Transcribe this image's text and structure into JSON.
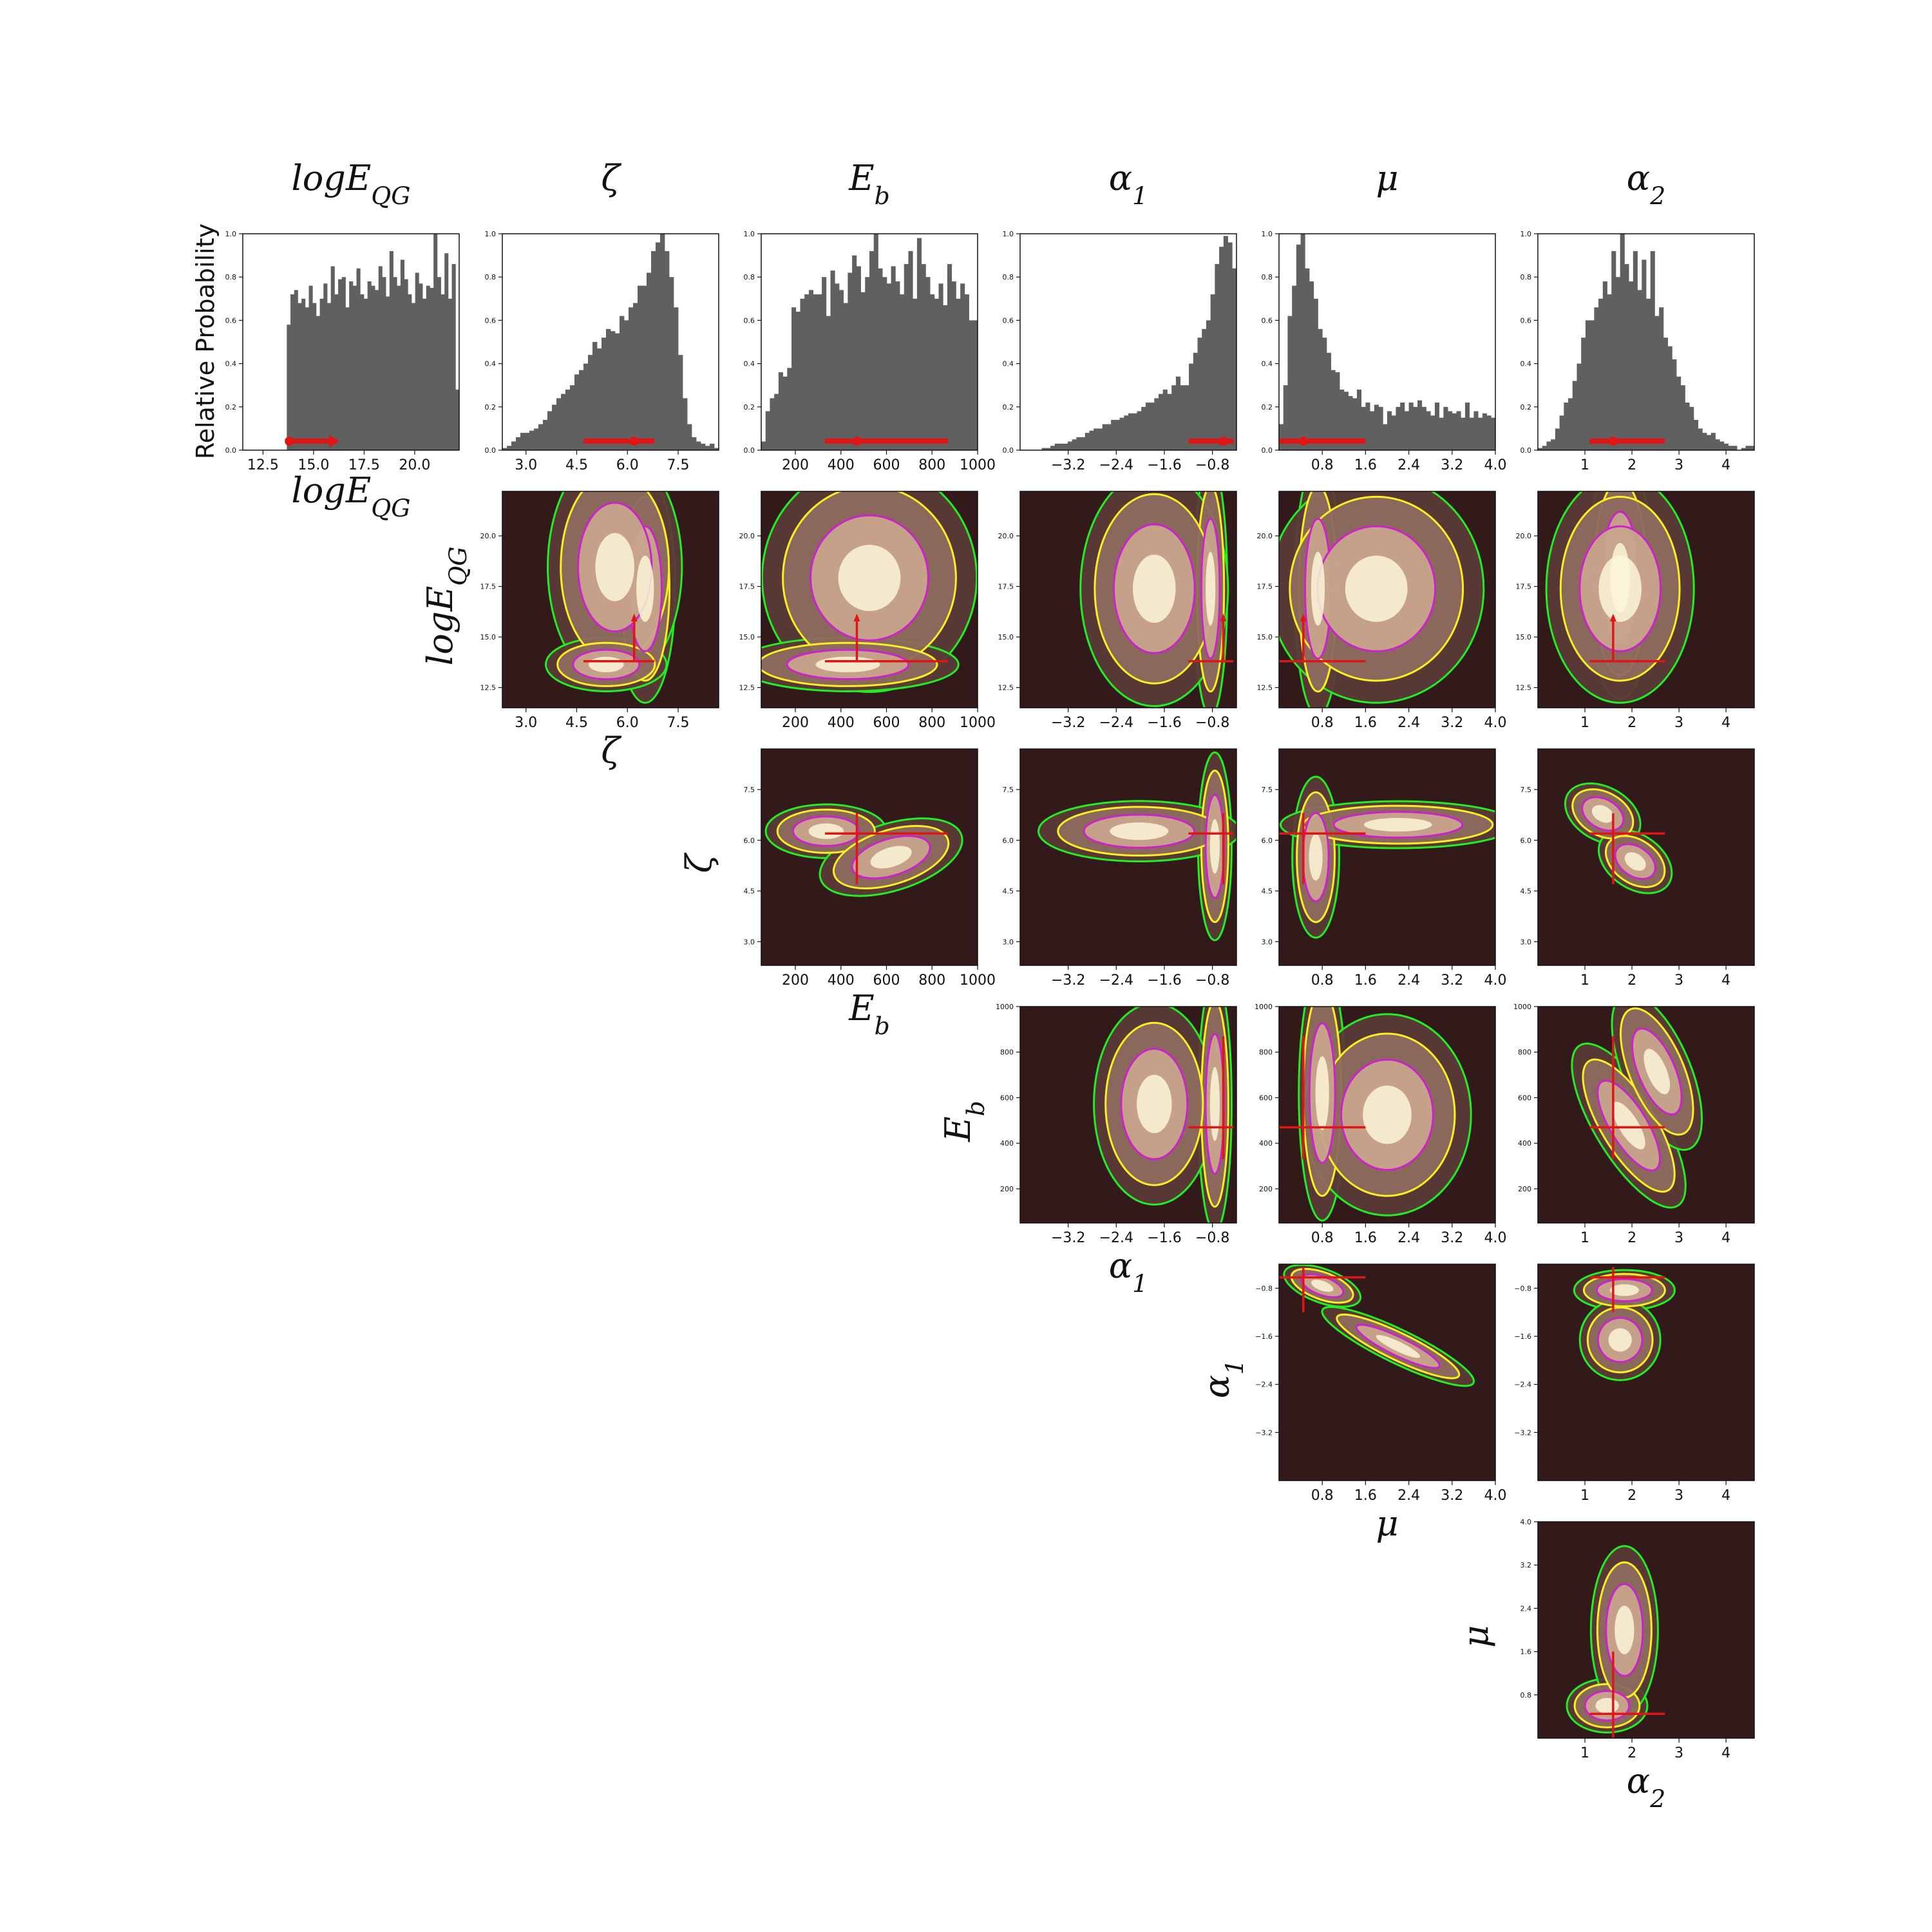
{
  "ylabel_rel": "Relative Probability",
  "colors": {
    "hist_bar": "#606060",
    "kde_bg": "#321a1a",
    "kde_hi": "#fcf6d8",
    "contour_green": "#22ee22",
    "contour_yellow": "#ffee22",
    "contour_magenta": "#cc22cc",
    "best_fit": "#e01515"
  },
  "params": [
    {
      "key": "logEQG",
      "base": "logE",
      "sub": "QG",
      "italic_base": true,
      "range": [
        11.5,
        22.2
      ],
      "ticks": [
        12.5,
        15.0,
        17.5,
        20.0
      ],
      "tick_labels": [
        "12.5",
        "15.0",
        "17.5",
        "20.0"
      ],
      "best": 13.8,
      "ci": [
        13.6,
        15.9
      ],
      "ci_arrow": "up"
    },
    {
      "key": "zeta",
      "base": "ζ",
      "sub": "",
      "italic_base": true,
      "range": [
        2.3,
        8.7
      ],
      "ticks": [
        3.0,
        4.5,
        6.0,
        7.5
      ],
      "tick_labels": [
        "3.0",
        "4.5",
        "6.0",
        "7.5"
      ],
      "best": 6.2,
      "ci": [
        4.7,
        6.8
      ],
      "ci_arrow": "none"
    },
    {
      "key": "Eb",
      "base": "E",
      "sub": "b",
      "italic_base": true,
      "range": [
        50,
        1000
      ],
      "ticks": [
        200,
        400,
        600,
        800,
        1000
      ],
      "tick_labels": [
        "200",
        "400",
        "600",
        "800",
        "1000"
      ],
      "best": 470,
      "ci": [
        330,
        870
      ],
      "ci_arrow": "none"
    },
    {
      "key": "alpha1",
      "base": "α",
      "sub": "1",
      "italic_base": true,
      "range": [
        -4.0,
        -0.4
      ],
      "ticks": [
        -3.2,
        -2.4,
        -1.6,
        -0.8
      ],
      "tick_labels": [
        "−3.2",
        "−2.4",
        "−1.6",
        "−0.8"
      ],
      "best": -0.62,
      "ci": [
        -1.2,
        -0.45
      ],
      "ci_arrow": "none"
    },
    {
      "key": "mu",
      "base": "μ",
      "sub": "",
      "italic_base": true,
      "range": [
        0.0,
        4.0
      ],
      "ticks": [
        0.8,
        1.6,
        2.4,
        3.2,
        4.0
      ],
      "tick_labels": [
        "0.8",
        "1.6",
        "2.4",
        "3.2",
        "4.0"
      ],
      "best": 0.45,
      "ci": [
        0.0,
        1.6
      ],
      "ci_arrow": "none"
    },
    {
      "key": "alpha2",
      "base": "α",
      "sub": "2",
      "italic_base": true,
      "range": [
        0.0,
        4.6
      ],
      "ticks": [
        1,
        2,
        3,
        4
      ],
      "tick_labels": [
        "1",
        "2",
        "3",
        "4"
      ],
      "best": 1.6,
      "ci": [
        1.1,
        2.7
      ],
      "ci_arrow": "none"
    }
  ],
  "chart_data": {
    "type": "corner",
    "description": "",
    "histograms": [
      {
        "param": "logEQG",
        "ylim": [
          0,
          1
        ],
        "yticks": [
          "0.0",
          "0.2",
          "0.4",
          "0.6",
          "0.8",
          "1.0"
        ],
        "values": [
          0,
          0,
          0,
          0,
          0,
          0,
          0,
          0,
          0,
          0,
          0,
          0,
          0.58,
          0.72,
          0.74,
          0.68,
          0.7,
          0.66,
          0.76,
          0.68,
          0.62,
          0.7,
          0.77,
          0.68,
          0.85,
          0.72,
          0.79,
          0.8,
          0.66,
          0.78,
          0.76,
          0.84,
          0.72,
          0.7,
          0.78,
          0.76,
          0.74,
          0.85,
          0.8,
          0.71,
          0.92,
          0.8,
          0.76,
          0.88,
          0.79,
          0.72,
          0.68,
          0.82,
          0.77,
          0.7,
          0.76,
          0.75,
          1.0,
          0.8,
          0.72,
          0.91,
          0.7,
          0.86,
          0.28
        ]
      },
      {
        "param": "zeta",
        "ylim": [
          0,
          1
        ],
        "yticks": [
          "0.0",
          "0.2",
          "0.4",
          "0.6",
          "0.8",
          "1.0"
        ],
        "values": [
          0.01,
          0.02,
          0.04,
          0.06,
          0.08,
          0.08,
          0.09,
          0.1,
          0.12,
          0.14,
          0.18,
          0.21,
          0.24,
          0.26,
          0.28,
          0.3,
          0.35,
          0.37,
          0.4,
          0.44,
          0.5,
          0.47,
          0.52,
          0.56,
          0.55,
          0.54,
          0.62,
          0.6,
          0.66,
          0.68,
          0.76,
          0.76,
          0.82,
          0.92,
          0.96,
          1.0,
          0.92,
          0.8,
          0.66,
          0.44,
          0.24,
          0.12,
          0.06,
          0.04,
          0.03,
          0.02,
          0.03,
          0.01
        ]
      },
      {
        "param": "Eb",
        "ylim": [
          0,
          1
        ],
        "yticks": [
          "0.0",
          "0.2",
          "0.4",
          "0.6",
          "0.8",
          "1.0"
        ],
        "values": [
          0.04,
          0.18,
          0.24,
          0.26,
          0.36,
          0.34,
          0.38,
          0.66,
          0.64,
          0.7,
          0.72,
          0.74,
          0.72,
          0.72,
          0.8,
          0.62,
          0.83,
          0.77,
          0.74,
          0.68,
          0.82,
          0.9,
          0.85,
          0.73,
          0.8,
          0.92,
          1.0,
          0.84,
          0.8,
          0.77,
          0.85,
          0.78,
          0.72,
          0.86,
          0.92,
          0.7,
          0.98,
          0.86,
          0.8,
          0.72,
          0.7,
          0.77,
          0.67,
          0.86,
          0.78,
          0.7,
          0.77,
          0.72,
          0.6,
          0.6
        ]
      },
      {
        "param": "alpha1",
        "ylim": [
          0,
          1
        ],
        "yticks": [
          "0.0",
          "0.2",
          "0.4",
          "0.6",
          "0.8",
          "1.0"
        ],
        "values": [
          0,
          0,
          0,
          0,
          0,
          0.01,
          0.01,
          0.02,
          0.03,
          0.03,
          0.03,
          0.04,
          0.05,
          0.06,
          0.06,
          0.08,
          0.09,
          0.1,
          0.1,
          0.12,
          0.12,
          0.14,
          0.14,
          0.15,
          0.16,
          0.17,
          0.17,
          0.18,
          0.2,
          0.22,
          0.22,
          0.24,
          0.26,
          0.28,
          0.26,
          0.3,
          0.34,
          0.3,
          0.3,
          0.4,
          0.45,
          0.52,
          0.56,
          0.6,
          0.72,
          0.86,
          0.94,
          0.99,
          0.96,
          0.84
        ]
      },
      {
        "param": "mu",
        "ylim": [
          0,
          1
        ],
        "yticks": [
          "0.0",
          "0.2",
          "0.4",
          "0.6",
          "0.8",
          "1.0"
        ],
        "values": [
          0.12,
          0.3,
          0.62,
          0.76,
          0.95,
          1.0,
          0.84,
          0.78,
          0.7,
          0.56,
          0.52,
          0.45,
          0.37,
          0.36,
          0.28,
          0.27,
          0.25,
          0.24,
          0.28,
          0.2,
          0.22,
          0.18,
          0.21,
          0.2,
          0.12,
          0.18,
          0.16,
          0.2,
          0.22,
          0.18,
          0.22,
          0.2,
          0.23,
          0.2,
          0.18,
          0.16,
          0.22,
          0.15,
          0.2,
          0.18,
          0.17,
          0.18,
          0.15,
          0.22,
          0.15,
          0.18,
          0.15,
          0.17,
          0.16,
          0.15
        ]
      },
      {
        "param": "alpha2",
        "ylim": [
          0,
          1
        ],
        "yticks": [
          "0.0",
          "0.2",
          "0.4",
          "0.6",
          "0.8",
          "1.0"
        ],
        "values": [
          0.01,
          0.02,
          0.04,
          0.05,
          0.1,
          0.16,
          0.22,
          0.24,
          0.32,
          0.4,
          0.52,
          0.6,
          0.6,
          0.66,
          0.7,
          0.78,
          0.72,
          0.92,
          0.8,
          1.0,
          0.86,
          0.78,
          0.92,
          0.74,
          0.88,
          0.7,
          0.92,
          0.62,
          0.66,
          0.52,
          0.48,
          0.42,
          0.34,
          0.3,
          0.22,
          0.2,
          0.14,
          0.1,
          0.08,
          0.07,
          0.08,
          0.05,
          0.04,
          0.03,
          0.02,
          0.02,
          0.0,
          0.01,
          0.02,
          0.02
        ]
      }
    ],
    "pairs": [
      {
        "x": "zeta",
        "y": "logEQG",
        "row": 1,
        "col": 1
      },
      {
        "x": "Eb",
        "y": "logEQG",
        "row": 1,
        "col": 2
      },
      {
        "x": "alpha1",
        "y": "logEQG",
        "row": 1,
        "col": 3
      },
      {
        "x": "mu",
        "y": "logEQG",
        "row": 1,
        "col": 4
      },
      {
        "x": "alpha2",
        "y": "logEQG",
        "row": 1,
        "col": 5
      },
      {
        "x": "Eb",
        "y": "zeta",
        "row": 2,
        "col": 2
      },
      {
        "x": "alpha1",
        "y": "zeta",
        "row": 2,
        "col": 3
      },
      {
        "x": "mu",
        "y": "zeta",
        "row": 2,
        "col": 4
      },
      {
        "x": "alpha2",
        "y": "zeta",
        "row": 2,
        "col": 5
      },
      {
        "x": "alpha1",
        "y": "Eb",
        "row": 3,
        "col": 3
      },
      {
        "x": "mu",
        "y": "Eb",
        "row": 3,
        "col": 4
      },
      {
        "x": "alpha2",
        "y": "Eb",
        "row": 3,
        "col": 5
      },
      {
        "x": "mu",
        "y": "alpha1",
        "row": 4,
        "col": 4
      },
      {
        "x": "alpha2",
        "y": "alpha1",
        "row": 4,
        "col": 5
      },
      {
        "x": "alpha2",
        "y": "mu",
        "row": 5,
        "col": 5
      }
    ]
  }
}
